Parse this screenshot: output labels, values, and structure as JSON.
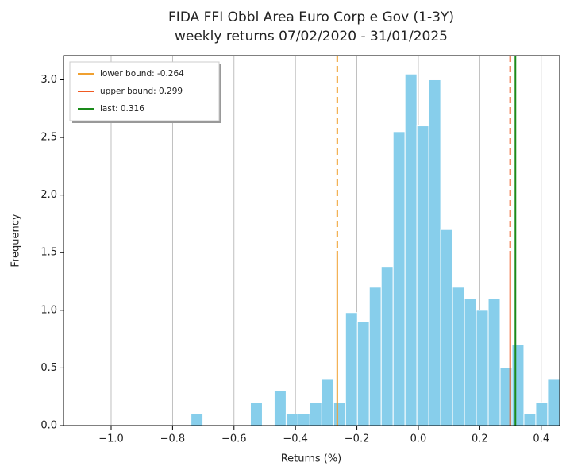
{
  "chart_data": {
    "type": "histogram",
    "title": [
      "FIDA FFI Obbl Area Euro Corp e Gov (1-3Y)",
      "weekly returns 07/02/2020 - 31/01/2025"
    ],
    "x_label": "Returns (%)",
    "y_label": "Frequency",
    "bins": [
      -0.74,
      -0.7013,
      -0.6626,
      -0.6239,
      -0.5852,
      -0.5465,
      -0.5078,
      -0.4691,
      -0.4304,
      -0.3917,
      -0.353,
      -0.3143,
      -0.2756,
      -0.2369,
      -0.1982,
      -0.1595,
      -0.1208,
      -0.0821,
      -0.0434,
      -0.0047,
      0.034,
      0.0727,
      0.1114,
      0.1501,
      0.1888,
      0.2275,
      0.2662,
      0.3049,
      0.3436,
      0.3823,
      0.421,
      0.4597
    ],
    "values": [
      0.1,
      0,
      0,
      0,
      0,
      0.2,
      0,
      0.3,
      0.1,
      0.1,
      0.2,
      0.4,
      0.2,
      0.98,
      0.9,
      1.2,
      1.38,
      2.55,
      3.05,
      2.6,
      3.0,
      1.7,
      1.2,
      1.1,
      1.0,
      1.1,
      0.5,
      0.7,
      0.1,
      0.2,
      0.4
    ],
    "color": "#87ceeb",
    "lines": [
      {
        "name": "lower bound: -0.264",
        "value": -0.264,
        "color": "#f0a030",
        "style": "dashed"
      },
      {
        "name": "upper bound: 0.299",
        "value": 0.299,
        "color": "#f05a22",
        "style": "dashed"
      },
      {
        "name": "last: 0.316",
        "value": 0.316,
        "color": "#1a8a1a",
        "style": "solid"
      }
    ],
    "xlim": [
      -1.155,
      0.46
    ],
    "ylim": [
      0,
      3.21
    ],
    "xticks": [
      {
        "value": -1.0,
        "label": "−1.0"
      },
      {
        "value": -0.8,
        "label": "−0.8"
      },
      {
        "value": -0.6,
        "label": "−0.6"
      },
      {
        "value": -0.4,
        "label": "−0.4"
      },
      {
        "value": -0.2,
        "label": "−0.2"
      },
      {
        "value": 0,
        "label": "0.0"
      },
      0.2,
      0.4
    ],
    "yticks": [
      {
        "value": 0,
        "label": "0.0"
      },
      0.5,
      {
        "value": 1,
        "label": "1.0"
      },
      1.5,
      {
        "value": 2,
        "label": "2.0"
      },
      2.5,
      {
        "value": 3,
        "label": "3.0"
      }
    ],
    "grid": "x",
    "legend": "upper left"
  }
}
